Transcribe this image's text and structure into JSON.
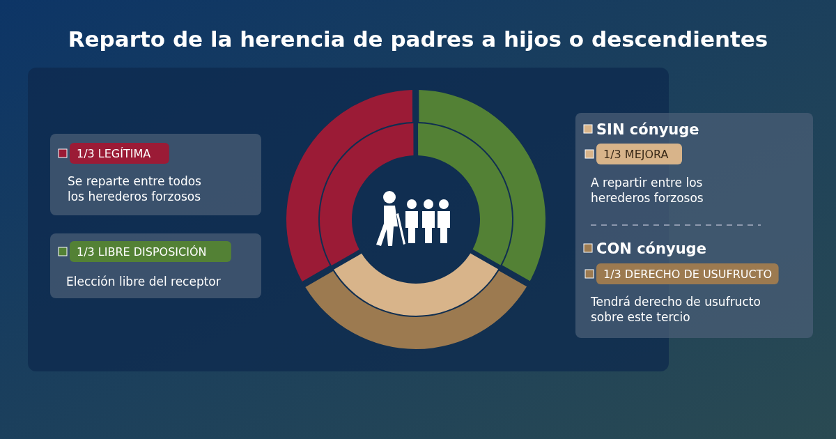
{
  "chart_data": {
    "type": "donut",
    "title": "Reparto de la herencia de padres a hijos o descendientes",
    "categories": [
      "1/3 LEGÍTIMA",
      "1/3 LIBRE DISPOSICIÓN",
      "1/3 MEJORA"
    ],
    "series": [
      {
        "name": "CON cónyuge",
        "values": [
          33.3,
          33.3,
          33.4
        ],
        "colors": [
          "#9b1b36",
          "#538135",
          "#9c7a50"
        ]
      },
      {
        "name": "SIN cónyuge",
        "values": [
          33.3,
          33.3,
          33.4
        ],
        "colors": [
          "#9b1b36",
          "#538135",
          "#d8b48a"
        ]
      }
    ],
    "legend": "top left",
    "annotations": [
      "Se reparte entre todos los herederos forzosos",
      "Elección libre del receptor",
      "A repartir entre los herederos forzosos",
      "1/3 DERECHO DE USUFRUCTO",
      "Tendrá derecho de usufructo sobre este tercio"
    ]
  }
}
